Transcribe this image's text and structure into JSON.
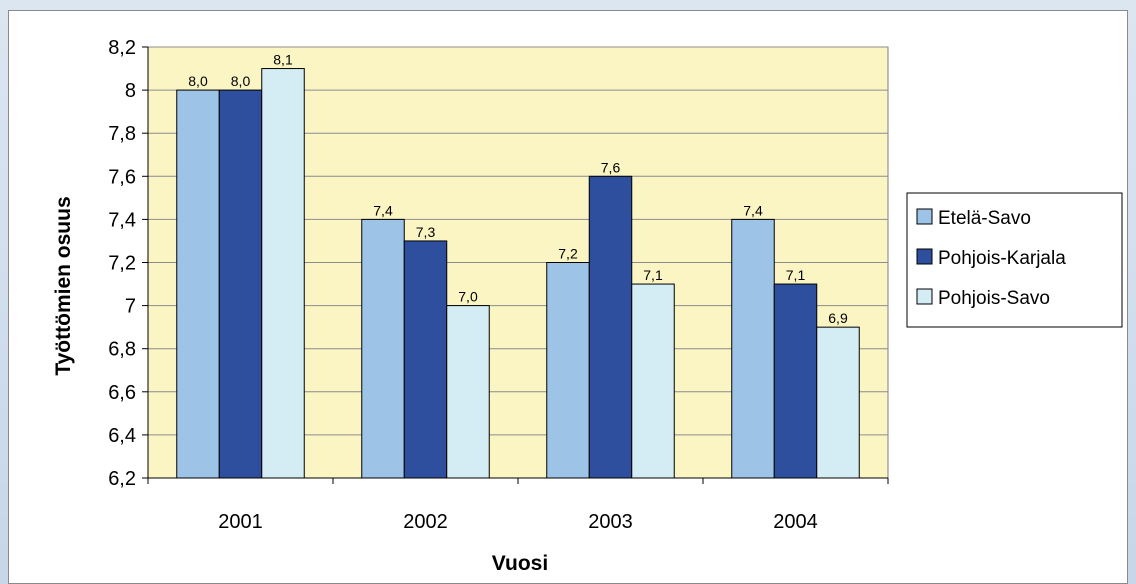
{
  "chart_data": {
    "type": "bar",
    "categories": [
      "2001",
      "2002",
      "2003",
      "2004"
    ],
    "series": [
      {
        "name": "Etelä-Savo",
        "values": [
          8.0,
          7.4,
          7.2,
          7.4
        ],
        "labels": [
          "8,0",
          "7,4",
          "7,2",
          "7,4"
        ],
        "color": "#9dc3e6"
      },
      {
        "name": "Pohjois-Karjala",
        "values": [
          8.0,
          7.3,
          7.6,
          7.1
        ],
        "labels": [
          "8,0",
          "7,3",
          "7,6",
          "7,1"
        ],
        "color": "#2e4f9e"
      },
      {
        "name": "Pohjois-Savo",
        "values": [
          8.1,
          7.0,
          7.1,
          6.9
        ],
        "labels": [
          "8,1",
          "7,0",
          "7,1",
          "6,9"
        ],
        "color": "#d4ecf4"
      }
    ],
    "xlabel": "Vuosi",
    "ylabel": "Työttömien osuus",
    "ylim": [
      6.2,
      8.2
    ],
    "yticks": [
      6.2,
      6.4,
      6.6,
      6.8,
      7.0,
      7.2,
      7.4,
      7.6,
      7.8,
      8.0,
      8.2
    ],
    "ytick_labels": [
      "6,2",
      "6,4",
      "6,6",
      "6,8",
      "7",
      "7,2",
      "7,4",
      "7,6",
      "7,8",
      "8",
      "8,2"
    ],
    "grid": true,
    "legend_position": "right",
    "plot_background": "#fbf5c4"
  }
}
